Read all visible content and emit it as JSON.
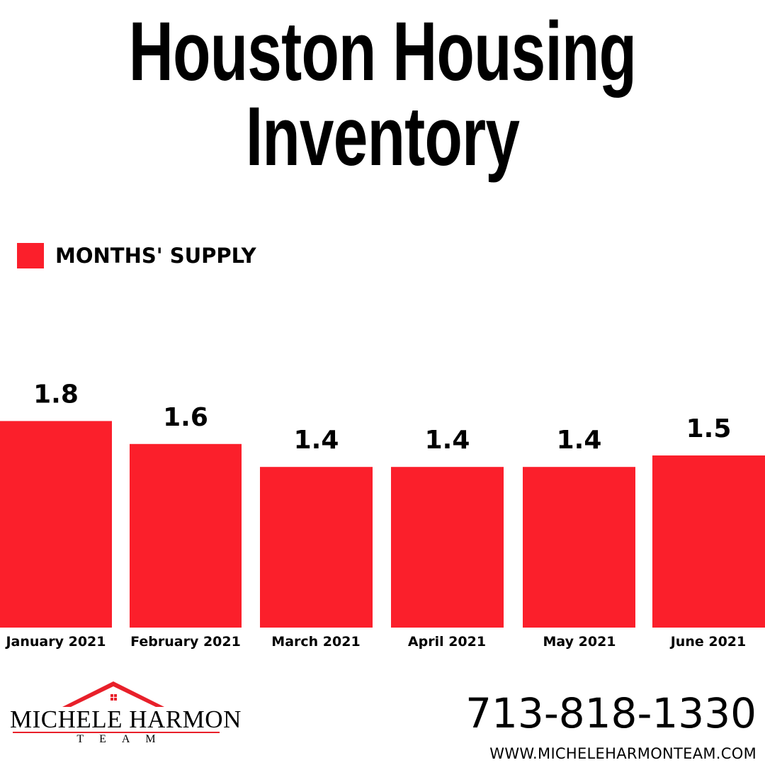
{
  "title": {
    "line1": "Houston Housing",
    "line2": "Inventory"
  },
  "legend": {
    "label": "MONTHS' SUPPLY",
    "color": "#fb1f2b"
  },
  "chart_data": {
    "type": "bar",
    "categories": [
      "January 2021",
      "February 2021",
      "March 2021",
      "April 2021",
      "May 2021",
      "June 2021"
    ],
    "series": [
      {
        "name": "MONTHS' SUPPLY",
        "values": [
          1.8,
          1.6,
          1.4,
          1.4,
          1.4,
          1.5
        ],
        "labels": [
          "1.8",
          "1.6",
          "1.4",
          "1.4",
          "1.4",
          "1.5"
        ],
        "color": "#fb1f2b"
      }
    ],
    "title": "Houston Housing Inventory",
    "xlabel": "",
    "ylabel": "",
    "grid": false,
    "legend_position": "top-left"
  },
  "branding": {
    "logo_name": "MICHELE HARMON",
    "logo_sub": "TEAM",
    "logo_roof_color": "#e8202a",
    "phone": "713-818-1330",
    "website": "WWW.MICHELEHARMONTEAM.COM"
  }
}
